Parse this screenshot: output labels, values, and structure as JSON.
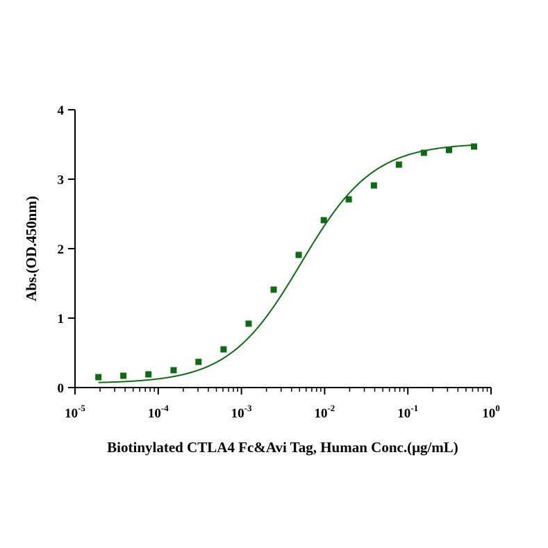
{
  "chart_data": {
    "type": "scatter",
    "xlabel": "Biotinylated CTLA4 Fc&Avi Tag, Human Conc.(μg/mL)",
    "ylabel": "Abs.(OD.450nm)",
    "x_scale": "log",
    "xlim": [
      1e-05,
      1
    ],
    "ylim": [
      0,
      4
    ],
    "x_ticks": [
      {
        "value": 1e-05,
        "base": "10",
        "exp": "-5"
      },
      {
        "value": 0.0001,
        "base": "10",
        "exp": "-4"
      },
      {
        "value": 0.001,
        "base": "10",
        "exp": "-3"
      },
      {
        "value": 0.01,
        "base": "10",
        "exp": "-2"
      },
      {
        "value": 0.1,
        "base": "10",
        "exp": "-1"
      },
      {
        "value": 1,
        "base": "10",
        "exp": "0"
      }
    ],
    "y_ticks": [
      {
        "value": 0,
        "label": "0"
      },
      {
        "value": 1,
        "label": "1"
      },
      {
        "value": 2,
        "label": "2"
      },
      {
        "value": 3,
        "label": "3"
      },
      {
        "value": 4,
        "label": "4"
      }
    ],
    "grid": false,
    "color": "#0d6b12",
    "series": [
      {
        "x": [
          1.91e-05,
          3.81e-05,
          7.63e-05,
          0.000153,
          0.000305,
          0.00061,
          0.00122,
          0.00244,
          0.00488,
          0.00977,
          0.0195,
          0.0391,
          0.0781,
          0.156,
          0.3125,
          0.625
        ],
        "y": [
          0.15,
          0.17,
          0.19,
          0.25,
          0.37,
          0.55,
          0.92,
          1.41,
          1.91,
          2.41,
          2.71,
          2.91,
          3.21,
          3.38,
          3.42,
          3.47
        ],
        "fit": "4PL"
      }
    ]
  }
}
